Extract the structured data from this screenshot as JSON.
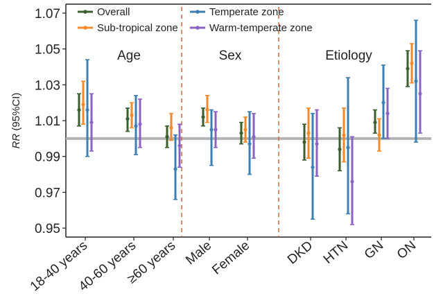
{
  "chart_data": {
    "type": "errorbar",
    "ylabel": "RR (95%CI)",
    "ylabel_italic_part": "RR",
    "ylabel_rest": " (95%CI)",
    "ylim": [
      0.945,
      1.075
    ],
    "yticks": [
      "1.07",
      "1.05",
      "1.03",
      "1.01",
      "0.99",
      "0.97",
      "0.95"
    ],
    "reference_line": 1.0,
    "legend": {
      "placement": "top",
      "entries": [
        {
          "name": "Overall",
          "color": "#3a5f2c"
        },
        {
          "name": "Sub-tropical zone",
          "color": "#f08a2c"
        },
        {
          "name": "Temperate zone",
          "color": "#3b7fb0"
        },
        {
          "name": "Warm-temperate zone",
          "color": "#8a63c2"
        }
      ]
    },
    "groups": [
      {
        "label": "Age",
        "categories": [
          "18-40 years",
          "40-60 years",
          "≥60 years"
        ]
      },
      {
        "label": "Sex",
        "categories": [
          "Male",
          "Female"
        ]
      },
      {
        "label": "Etiology",
        "categories": [
          "DKD",
          "HTN",
          "GN",
          "ON"
        ]
      }
    ],
    "categories": [
      "18-40 years",
      "40-60 years",
      "≥60 years",
      "Male",
      "Female",
      "DKD",
      "HTN",
      "GN",
      "ON"
    ],
    "series": [
      {
        "name": "Overall",
        "estimate": [
          1.016,
          1.011,
          1.001,
          1.012,
          1.003,
          0.998,
          0.994,
          1.009,
          1.039
        ],
        "lower": [
          1.007,
          1.004,
          0.995,
          1.007,
          0.997,
          0.988,
          0.982,
          1.003,
          1.029
        ],
        "upper": [
          1.025,
          1.017,
          1.007,
          1.017,
          1.009,
          1.008,
          1.006,
          1.016,
          1.049
        ]
      },
      {
        "name": "Sub-tropical zone",
        "estimate": [
          1.019,
          1.013,
          1.006,
          1.016,
          1.005,
          1.003,
          1.002,
          1.002,
          1.042
        ],
        "lower": [
          1.008,
          1.006,
          0.999,
          1.009,
          0.998,
          0.989,
          0.987,
          0.993,
          1.031
        ],
        "upper": [
          1.032,
          1.02,
          1.014,
          1.024,
          1.012,
          1.017,
          1.017,
          1.011,
          1.053
        ]
      },
      {
        "name": "Temperate zone",
        "estimate": [
          1.016,
          1.007,
          0.983,
          1.005,
          0.997,
          0.984,
          0.995,
          1.02,
          1.032
        ],
        "lower": [
          0.99,
          0.991,
          0.966,
          0.985,
          0.98,
          0.955,
          0.958,
          1.0,
          0.998
        ],
        "upper": [
          1.044,
          1.024,
          1.002,
          1.016,
          1.015,
          1.014,
          1.034,
          1.041,
          1.066
        ]
      },
      {
        "name": "Warm-temperate zone",
        "estimate": [
          1.009,
          1.008,
          0.996,
          1.005,
          1.001,
          0.997,
          0.976,
          1.014,
          1.025
        ],
        "lower": [
          0.993,
          0.995,
          0.984,
          0.995,
          0.989,
          0.979,
          0.952,
          1.0,
          1.003
        ],
        "upper": [
          1.025,
          1.022,
          1.008,
          1.015,
          1.014,
          1.016,
          1.001,
          1.028,
          1.049
        ]
      }
    ]
  }
}
